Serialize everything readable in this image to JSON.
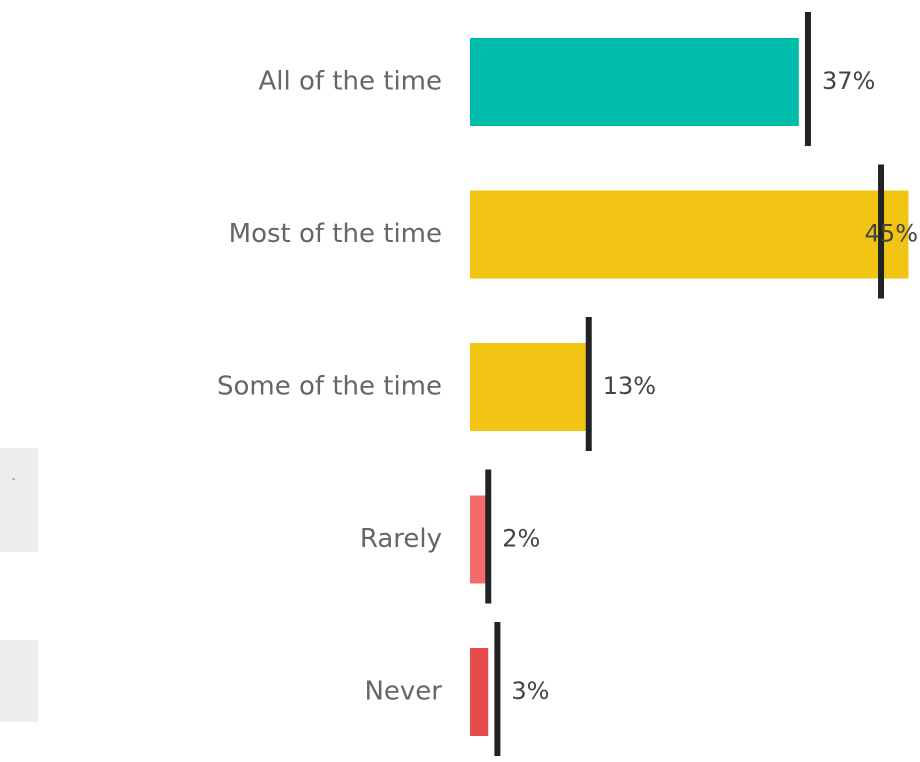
{
  "chart_data": {
    "type": "bar",
    "orientation": "horizontal",
    "title": "",
    "xlabel": "",
    "ylabel": "",
    "xlim": [
      0,
      48.5
    ],
    "grid": false,
    "legend": "none",
    "categories": [
      "All of the time",
      "Most of the time",
      "Some of the time",
      "Rarely",
      "Never"
    ],
    "values": [
      36,
      48,
      13,
      2,
      2
    ],
    "reference_values": [
      37,
      45,
      13,
      2,
      3
    ],
    "data_labels": [
      "37%",
      "45%",
      "13%",
      "2%",
      "3%"
    ],
    "colors": [
      "#00bcab",
      "#f2c413",
      "#f2c413",
      "#f56b6b",
      "#e64c4c"
    ],
    "reference_color": "#222222"
  }
}
